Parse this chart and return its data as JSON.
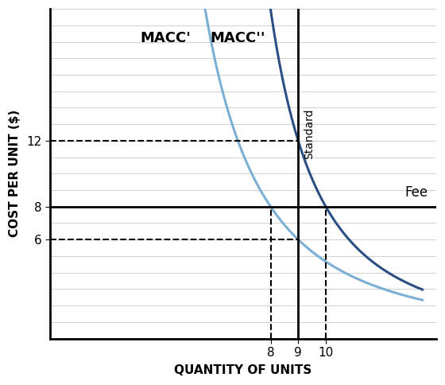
{
  "title": "",
  "xlabel": "QUANTITY OF UNITS",
  "ylabel": "COST PER UNIT ($)",
  "background_color": "#ffffff",
  "plot_bg_color": "#ffffff",
  "grid_color": "#d0d0d0",
  "curve1_color": "#7bafd4",
  "curve2_color": "#2b4f82",
  "fee_line_y": 8,
  "fee_label": "Fee",
  "standard_x": 9,
  "standard_label": "Standard",
  "dashed_h_y1": 12,
  "dashed_h_y2": 6,
  "dashed_v_x1": 8,
  "dashed_v_x2": 10,
  "macc1_label": "MACC'",
  "macc2_label": "MACC''",
  "xlim": [
    0,
    14
  ],
  "ylim": [
    0,
    20
  ]
}
